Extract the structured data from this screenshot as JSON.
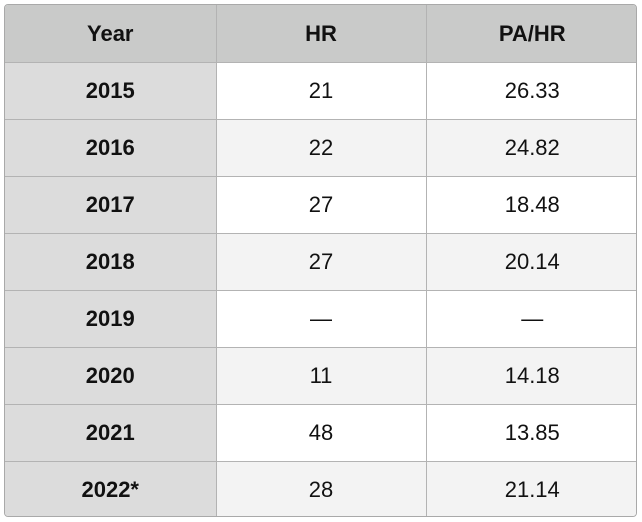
{
  "table": {
    "header": [
      "Year",
      "HR",
      "PA/HR"
    ],
    "rows": [
      [
        2015,
        21,
        26.33
      ],
      [
        2016,
        22,
        24.82
      ],
      [
        2017,
        27,
        18.48
      ],
      [
        2018,
        27,
        20.14
      ],
      [
        2019,
        "—",
        "—"
      ],
      [
        2020,
        11,
        14.18
      ],
      [
        2021,
        48,
        13.85
      ],
      [
        "2022*",
        28,
        21.14
      ]
    ]
  }
}
